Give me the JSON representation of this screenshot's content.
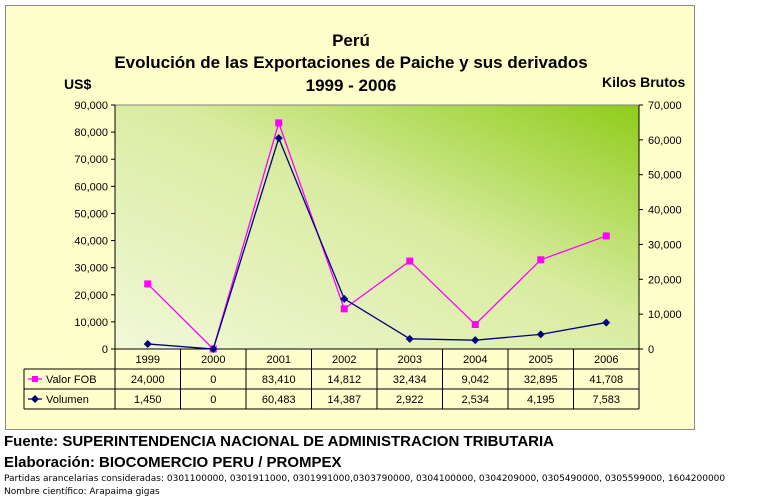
{
  "chart_data": {
    "type": "line",
    "title": "Perú",
    "subtitle": "Evolución de las Exportaciones de Paiche y sus derivados",
    "period": "1999 - 2006",
    "ylabel_left": "US$",
    "ylabel_right": "Kilos Brutos",
    "ylim_left": [
      0,
      90000
    ],
    "ylim_right": [
      0,
      70000
    ],
    "yticks_left": [
      "0",
      "10,000",
      "20,000",
      "30,000",
      "40,000",
      "50,000",
      "60,000",
      "70,000",
      "80,000",
      "90,000"
    ],
    "yticks_right": [
      "0",
      "10,000",
      "20,000",
      "30,000",
      "40,000",
      "50,000",
      "60,000",
      "70,000"
    ],
    "categories": [
      "1999",
      "2000",
      "2001",
      "2002",
      "2003",
      "2004",
      "2005",
      "2006"
    ],
    "series": [
      {
        "name": "Valor FOB",
        "axis": "left",
        "color": "#ff00ff",
        "marker": "square",
        "values": [
          24000,
          0,
          83410,
          14812,
          32434,
          9042,
          32895,
          41708
        ],
        "labels": [
          "24,000",
          "0",
          "83,410",
          "14,812",
          "32,434",
          "9,042",
          "32,895",
          "41,708"
        ]
      },
      {
        "name": "Volumen",
        "axis": "right",
        "color": "#000080",
        "marker": "diamond",
        "values": [
          1450,
          0,
          60483,
          14387,
          2922,
          2534,
          4195,
          7583
        ],
        "labels": [
          "1,450",
          "0",
          "60,483",
          "14,387",
          "2,922",
          "2,534",
          "4,195",
          "7,583"
        ]
      }
    ]
  },
  "footer": {
    "source": "Fuente: SUPERINTENDENCIA NACIONAL DE ADMINISTRACION TRIBUTARIA",
    "elaboration": "Elaboración: BIOCOMERCIO PERU / PROMPEX",
    "tariff_lines": "Partidas arancelarias consideradas: 0301100000, 0301911000, 0301991000,0303790000, 0304100000, 0304209000, 0305490000, 0305599000, 1604200000",
    "scientific_name": "Nombre científico: Arapaima gigas"
  }
}
